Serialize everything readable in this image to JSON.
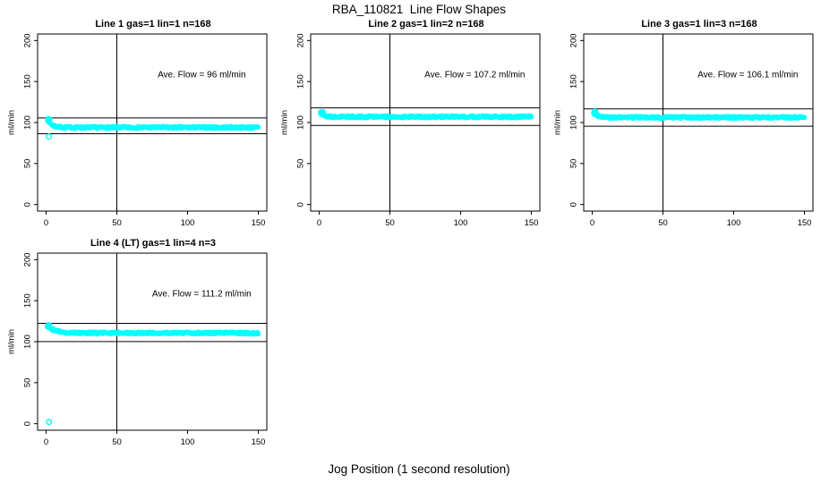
{
  "title": "RBA_110821  Line Flow Shapes",
  "xlabel": "Jog Position (1 second resolution)",
  "colors": {
    "points": "#00FFFF",
    "axis": "#000000",
    "background": "#FFFFFF",
    "text": "#000000"
  },
  "chart_data": [
    {
      "type": "scatter",
      "title": "Line 1 gas=1 lin=1 n=168",
      "ylabel": "ml/min",
      "ave_flow": 96,
      "ave_flow_label": "Ave. Flow =  96  ml/min",
      "xlim": [
        0,
        150
      ],
      "ylim": [
        0,
        200
      ],
      "x_ticks": [
        0,
        50,
        100,
        150
      ],
      "y_ticks": [
        0,
        50,
        100,
        150,
        200
      ],
      "vline_x": 50,
      "ref_lines": [
        105.6,
        86.4
      ],
      "series": {
        "name": "flow-trace",
        "x_start": 1,
        "x_end": 150,
        "start": 103.5,
        "asymptote": 94,
        "decay_len": 3,
        "band_halfwidth": 1.3
      },
      "outliers": [
        [
          2,
          83
        ]
      ]
    },
    {
      "type": "scatter",
      "title": "Line 2 gas=1 lin=2 n=168",
      "ylabel": "ml/min",
      "ave_flow": 107.2,
      "ave_flow_label": "Ave. Flow =  107.2  ml/min",
      "xlim": [
        0,
        150
      ],
      "ylim": [
        0,
        200
      ],
      "x_ticks": [
        0,
        50,
        100,
        150
      ],
      "y_ticks": [
        0,
        50,
        100,
        150,
        200
      ],
      "vline_x": 50,
      "ref_lines": [
        117.9,
        96.5
      ],
      "series": {
        "name": "flow-trace",
        "x_start": 1,
        "x_end": 150,
        "start": 111.5,
        "asymptote": 107,
        "decay_len": 2.5,
        "band_halfwidth": 1.3
      },
      "outliers": []
    },
    {
      "type": "scatter",
      "title": "Line 3 gas=1 lin=3 n=168",
      "ylabel": "ml/min",
      "ave_flow": 106.1,
      "ave_flow_label": "Ave. Flow =  106.1  ml/min",
      "xlim": [
        0,
        150
      ],
      "ylim": [
        0,
        200
      ],
      "x_ticks": [
        0,
        50,
        100,
        150
      ],
      "y_ticks": [
        0,
        50,
        100,
        150,
        200
      ],
      "vline_x": 50,
      "ref_lines": [
        116.7,
        95.5
      ],
      "series": {
        "name": "flow-trace",
        "x_start": 1,
        "x_end": 150,
        "start": 112,
        "asymptote": 106.3,
        "decay_len": 2.5,
        "band_halfwidth": 1.3
      },
      "outliers": []
    },
    {
      "type": "scatter",
      "title": "Line 4 (LT) gas=1 lin=4 n=3",
      "ylabel": "ml/min",
      "ave_flow": 111.2,
      "ave_flow_label": "Ave. Flow =  111.2  ml/min",
      "xlim": [
        0,
        150
      ],
      "ylim": [
        0,
        200
      ],
      "x_ticks": [
        0,
        50,
        100,
        150
      ],
      "y_ticks": [
        0,
        50,
        100,
        150,
        200
      ],
      "vline_x": 50,
      "ref_lines": [
        122.3,
        100.1
      ],
      "series": {
        "name": "flow-trace",
        "x_start": 1,
        "x_end": 150,
        "start": 119,
        "asymptote": 110.6,
        "decay_len": 5.5,
        "band_halfwidth": 1.3
      },
      "outliers": [
        [
          2,
          2
        ]
      ]
    }
  ]
}
